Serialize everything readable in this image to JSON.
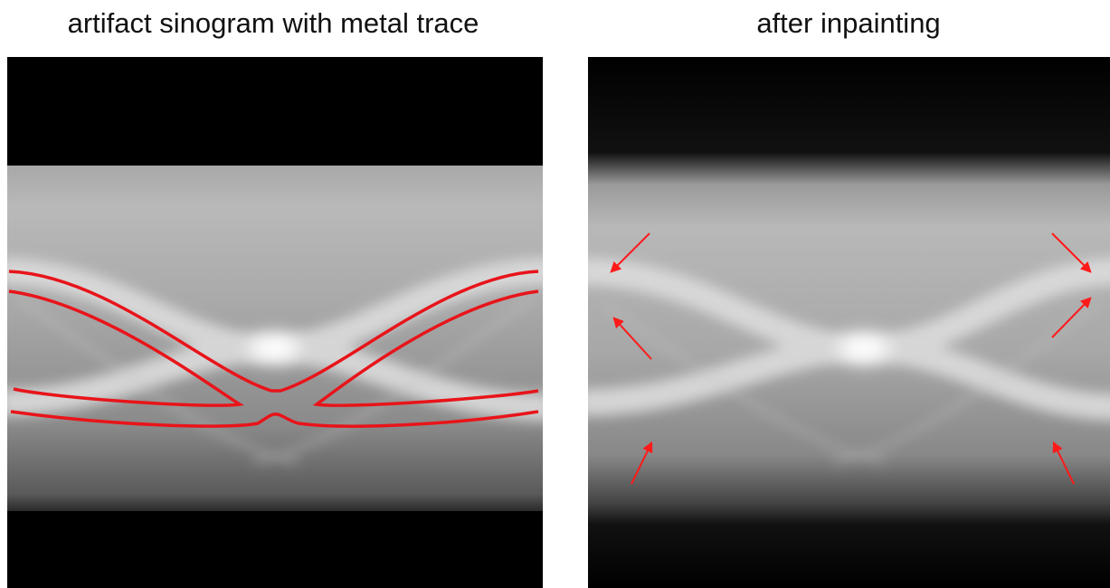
{
  "panels": [
    {
      "title": "artifact sinogram with metal trace"
    },
    {
      "title": "after inpainting"
    }
  ]
}
